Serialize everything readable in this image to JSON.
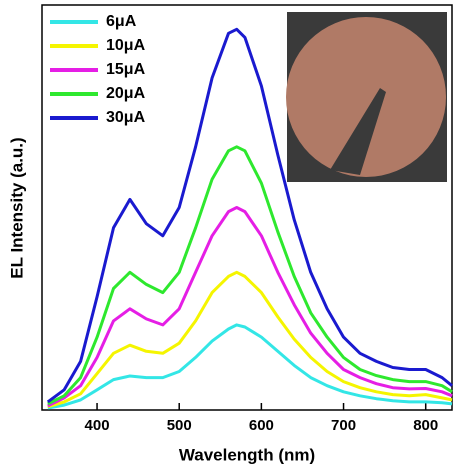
{
  "chart_data": {
    "type": "line",
    "x_label": "Wavelength (nm)",
    "y_label": "EL Intensity (a.u.)",
    "x": [
      340,
      360,
      380,
      400,
      420,
      440,
      460,
      480,
      500,
      520,
      540,
      560,
      570,
      580,
      600,
      620,
      640,
      660,
      680,
      700,
      720,
      740,
      760,
      780,
      800,
      820,
      832
    ],
    "series": [
      {
        "name": "6μA",
        "color": "#33e6e6",
        "values": [
          0.5,
          1.2,
          2.5,
          5,
          7.5,
          8.4,
          8,
          8,
          9.5,
          13,
          17,
          20,
          21,
          20.5,
          18,
          14.5,
          11,
          8,
          6,
          4.5,
          3.5,
          2.8,
          2.3,
          2,
          2,
          1.8,
          1.5
        ]
      },
      {
        "name": "10μA",
        "color": "#f5f500",
        "values": [
          0.8,
          2,
          4,
          9,
          14,
          16,
          14.5,
          14,
          16.5,
          22,
          29,
          33,
          34,
          33,
          29,
          23,
          17.5,
          13,
          9.5,
          7,
          5.5,
          4.5,
          3.8,
          3.5,
          3.8,
          3,
          2.5
        ]
      },
      {
        "name": "15μA",
        "color": "#e51ee5",
        "values": [
          1,
          3,
          6,
          13,
          22,
          25,
          22.5,
          21,
          25,
          34,
          43,
          49,
          50,
          49,
          43,
          34,
          26,
          19,
          14,
          10,
          8,
          6.5,
          5.5,
          5.2,
          5.3,
          4.5,
          3.5
        ]
      },
      {
        "name": "20μA",
        "color": "#2ee82e",
        "values": [
          1.5,
          3.5,
          8,
          18,
          30,
          34,
          31,
          29,
          34,
          45,
          57,
          64,
          65,
          64,
          56,
          44,
          33,
          24,
          18,
          13,
          10,
          8.5,
          7.5,
          7,
          7,
          6,
          4.5
        ]
      },
      {
        "name": "30μA",
        "color": "#1a1acf",
        "values": [
          2,
          5,
          12,
          28,
          45,
          52,
          46,
          43,
          50,
          65,
          82,
          93,
          94,
          92,
          80,
          63,
          47,
          34,
          25,
          18,
          14,
          12,
          10.5,
          10,
          10,
          8,
          6
        ]
      }
    ],
    "xlim": [
      333,
      832
    ],
    "xticks": [
      400,
      500,
      600,
      700,
      800
    ],
    "ylim": [
      0,
      100
    ],
    "legend": "upper left"
  }
}
